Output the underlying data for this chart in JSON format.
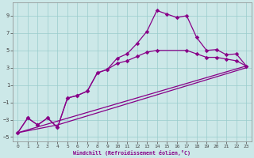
{
  "background_color": "#cce8e8",
  "grid_color": "#99cccc",
  "line_color": "#880088",
  "xlabel": "Windchill (Refroidissement éolien,°C)",
  "xlim": [
    -0.5,
    23.5
  ],
  "ylim": [
    -5.5,
    10.5
  ],
  "xticks": [
    0,
    1,
    2,
    3,
    4,
    5,
    6,
    7,
    8,
    9,
    10,
    11,
    12,
    13,
    14,
    15,
    16,
    17,
    18,
    19,
    20,
    21,
    22,
    23
  ],
  "yticks": [
    -5,
    -3,
    -1,
    1,
    3,
    5,
    7,
    9
  ],
  "curve1_x": [
    0,
    1,
    2,
    3,
    4,
    5,
    6,
    7,
    8,
    9,
    10,
    11,
    12,
    13,
    14,
    15,
    16,
    17,
    18,
    19,
    20,
    21,
    22,
    23
  ],
  "curve1_y": [
    -4.5,
    -2.8,
    -3.6,
    -2.8,
    -3.9,
    -0.5,
    -0.2,
    0.3,
    2.4,
    2.8,
    4.1,
    4.6,
    5.8,
    7.2,
    9.6,
    9.2,
    8.8,
    9.0,
    6.5,
    5.0,
    5.1,
    4.5,
    4.6,
    3.2
  ],
  "curve2_x": [
    0,
    1,
    2,
    3,
    4,
    5,
    6,
    7,
    8,
    9,
    10,
    11,
    12,
    13,
    14,
    17,
    18,
    19,
    20,
    21,
    22,
    23
  ],
  "curve2_y": [
    -4.5,
    -2.8,
    -3.6,
    -2.8,
    -3.9,
    -0.5,
    -0.2,
    0.3,
    2.4,
    2.8,
    3.5,
    3.8,
    4.3,
    4.8,
    5.0,
    5.0,
    4.6,
    4.2,
    4.2,
    4.0,
    3.8,
    3.2
  ],
  "line3_x": [
    0,
    23
  ],
  "line3_y": [
    -4.5,
    3.2
  ],
  "line4_x": [
    0,
    4,
    23
  ],
  "line4_y": [
    -4.5,
    -3.6,
    3.0
  ],
  "linewidth": 0.9,
  "markersize": 2.8
}
